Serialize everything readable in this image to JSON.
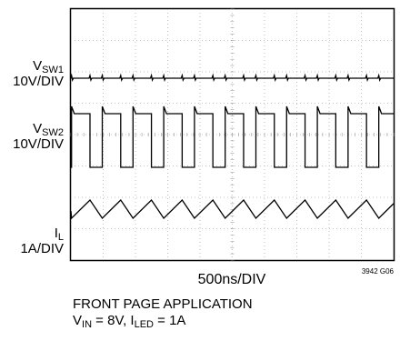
{
  "chart_data": {
    "type": "line",
    "title": "",
    "xlabel": "500ns/DIV",
    "ylabel": "",
    "grid": true,
    "divisions": {
      "x": 10,
      "y": 8
    },
    "x_unit": "ns",
    "x_per_div": 500,
    "x_range": [
      0,
      5000
    ],
    "switching_period_ns": 476,
    "series": [
      {
        "name": "V_SW1",
        "scale": "10V/DIV",
        "waveform": "flat with small spikes at each switching edge"
      },
      {
        "name": "V_SW2",
        "scale": "10V/DIV",
        "waveform": "square wave, high pulse ~60% of period",
        "duty_high": 0.6,
        "edge_times_ns": []
      },
      {
        "name": "I_L",
        "scale": "1A/DIV",
        "waveform": "triangle wave, rising while V_SW2 is low"
      }
    ]
  },
  "labels": {
    "vsw1": {
      "main": "V",
      "sub": "SW1",
      "scale": "10V/DIV"
    },
    "vsw2": {
      "main": "V",
      "sub": "SW2",
      "scale": "10V/DIV"
    },
    "il": {
      "main": "I",
      "sub": "L",
      "scale": "1A/DIV"
    }
  },
  "figure_code": "3942 G06",
  "caption": {
    "line1": "FRONT PAGE APPLICATION",
    "vin_main": "V",
    "vin_sub": "IN",
    "vin_value": " = 8V, ",
    "iled_main": "I",
    "iled_sub": "LED",
    "iled_value": " = 1A"
  }
}
